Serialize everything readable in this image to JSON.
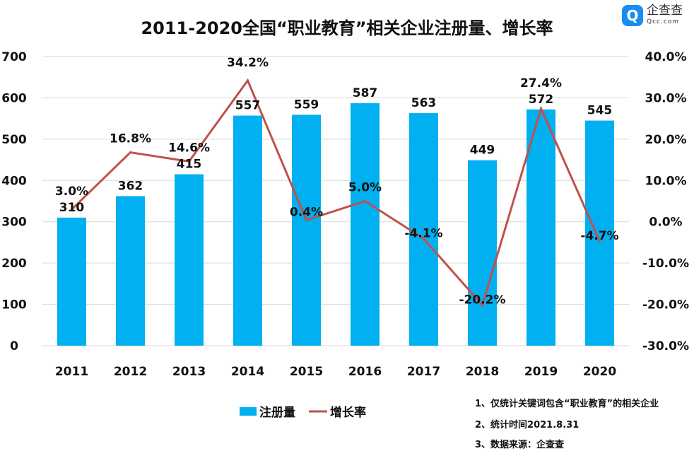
{
  "chart_data": {
    "type": "bar+line",
    "title": "2011-2020全国“职业教育”相关企业注册量、增长率",
    "categories": [
      "2011",
      "2012",
      "2013",
      "2014",
      "2015",
      "2016",
      "2017",
      "2018",
      "2019",
      "2020"
    ],
    "series": [
      {
        "name": "注册量",
        "type": "bar",
        "axis": "left",
        "color": "#00b0f0",
        "values": [
          310,
          362,
          415,
          557,
          559,
          587,
          563,
          449,
          572,
          545
        ]
      },
      {
        "name": "增长率",
        "type": "line",
        "axis": "right",
        "color": "#c0504d",
        "values": [
          3.0,
          16.8,
          14.6,
          34.2,
          0.4,
          5.0,
          -4.1,
          -20.2,
          27.4,
          -4.7
        ]
      }
    ],
    "y_left": {
      "range": [
        0,
        700
      ],
      "ticks": [
        "0",
        "100",
        "200",
        "300",
        "400",
        "500",
        "600",
        "700"
      ]
    },
    "y_right": {
      "range": [
        -30,
        40
      ],
      "ticks": [
        "-30.0%",
        "-20.0%",
        "-10.0%",
        "0.0%",
        "10.0%",
        "20.0%",
        "30.0%",
        "40.0%"
      ]
    },
    "grid": true,
    "legend": "bottom-left"
  },
  "notes": [
    "1、仅统计关键词包含“职业教育”的相关企业",
    "2、统计时间2021.8.31",
    "3、数据来源：企查查"
  ],
  "logo": {
    "cn": "企查查",
    "en": "Qcc.com"
  }
}
